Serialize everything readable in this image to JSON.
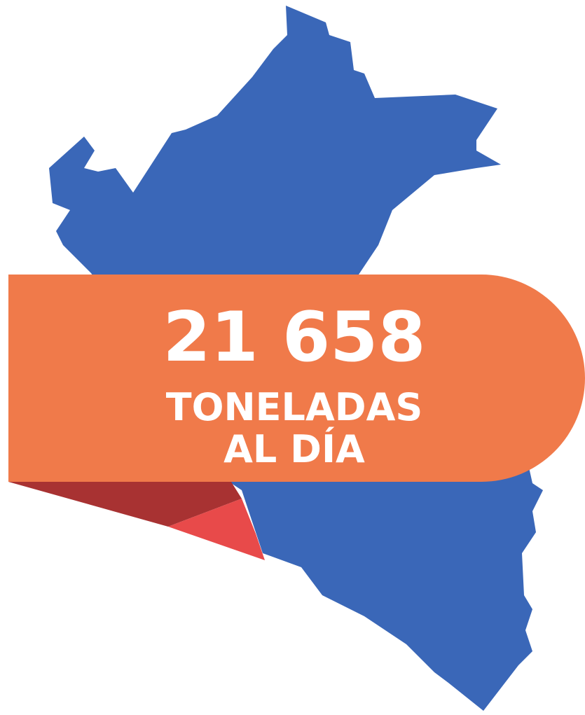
{
  "value": "21 658",
  "unit_lines": [
    "TONELADAS",
    "AL DÍA"
  ]
}
